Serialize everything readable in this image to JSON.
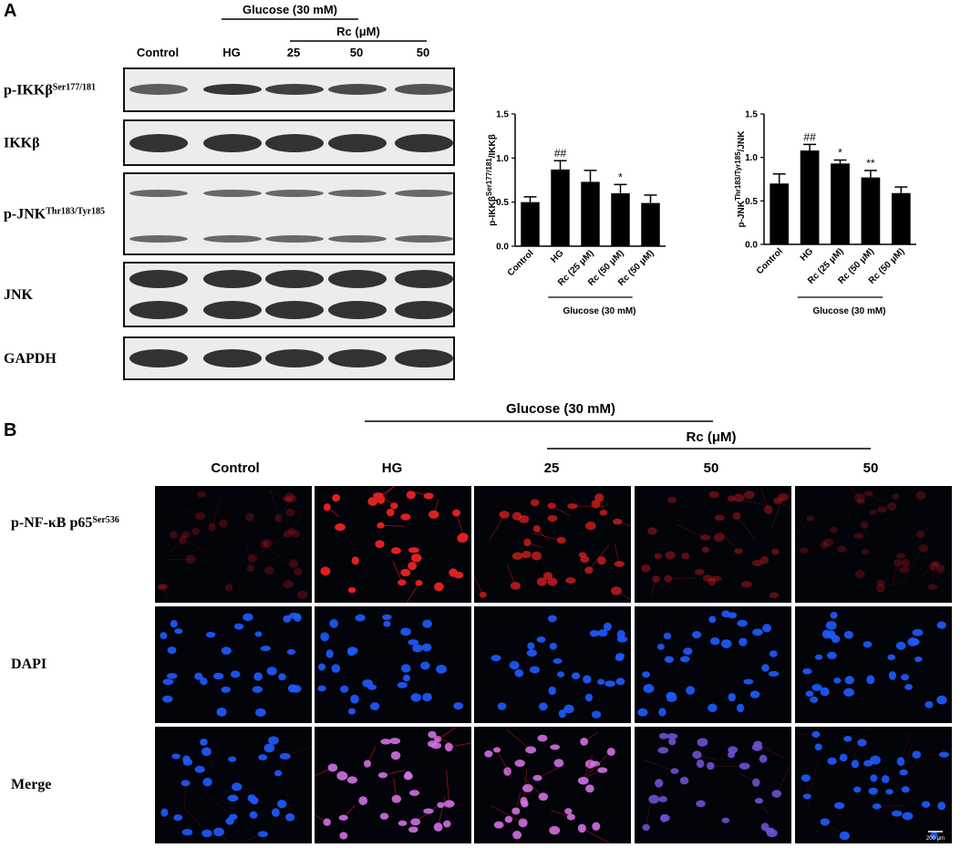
{
  "panel_a": {
    "label": "A",
    "treatment": "Glucose (30 mM)",
    "inhibitor": "Rc (μM)",
    "columns": [
      "Control",
      "HG",
      "25",
      "50",
      "50"
    ],
    "blots": [
      {
        "name": "p-IKKβ",
        "sup": "Ser177/181"
      },
      {
        "name": "IKKβ"
      },
      {
        "name": "p-JNK",
        "sup": "Thr183/Tyr185"
      },
      {
        "name": "JNK"
      },
      {
        "name": "GAPDH"
      }
    ]
  },
  "chart_data": [
    {
      "type": "bar",
      "ylabel": {
        "pre": "p-IKKβ",
        "sup": "Ser177/181",
        "post": "/IKKβ"
      },
      "categories": [
        "Control",
        "HG",
        "Rc (25 μM)",
        "Rc (50 μM)",
        "Rc (50 μM)"
      ],
      "values": [
        0.5,
        0.87,
        0.73,
        0.6,
        0.49
      ],
      "errors": [
        0.06,
        0.1,
        0.13,
        0.1,
        0.09
      ],
      "markers": [
        null,
        "##",
        null,
        "*",
        null
      ],
      "group_label": "Glucose (30 mM)",
      "color": "#000000",
      "ylim": [
        0,
        1.5
      ],
      "yticks": [
        {
          "value": 0,
          "label": "0.0"
        },
        0.5,
        {
          "value": 1,
          "label": "1.0"
        },
        1.5
      ]
    },
    {
      "type": "bar",
      "ylabel": {
        "pre": "p-JNK",
        "sup": "Thr183/Tyr185",
        "post": "/JNK"
      },
      "categories": [
        "Control",
        "HG",
        "Rc (25 μM)",
        "Rc (50 μM)",
        "Rc (50 μM)"
      ],
      "values": [
        0.7,
        1.08,
        0.93,
        0.77,
        0.59
      ],
      "errors": [
        0.11,
        0.07,
        0.04,
        0.08,
        0.07
      ],
      "markers": [
        null,
        "##",
        "*",
        "**",
        null
      ],
      "group_label": "Glucose (30 mM)",
      "color": "#000000",
      "ylim": [
        0,
        1.5
      ],
      "yticks": [
        {
          "value": 0,
          "label": "0.0"
        },
        0.5,
        {
          "value": 1,
          "label": "1.0"
        },
        1.5
      ]
    }
  ],
  "panel_b": {
    "label": "B",
    "treatment": "Glucose (30 mM)",
    "inhibitor": "Rc (μM)",
    "columns": [
      "Control",
      "HG",
      "25",
      "50",
      "50"
    ],
    "rows": [
      {
        "name": "p-NF-κB p65",
        "sup": "Ser536"
      },
      {
        "name": "DAPI"
      },
      {
        "name": "Merge"
      }
    ],
    "scale_bar": "200 μm"
  }
}
